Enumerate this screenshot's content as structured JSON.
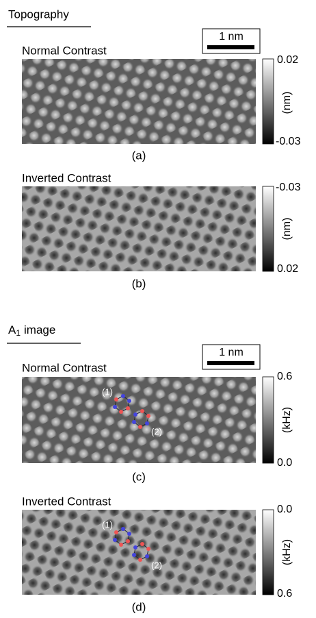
{
  "sections": [
    {
      "title": {
        "base": "Topography"
      },
      "scale_bar": "1 nm",
      "panels": [
        {
          "heading": "Normal Contrast",
          "label": "(a)",
          "colorbar": {
            "top": "0.02",
            "bottom": "-0.03",
            "unit": "(nm)"
          }
        },
        {
          "heading": "Inverted Contrast",
          "label": "(b)",
          "colorbar": {
            "top": "-0.03",
            "bottom": "0.02",
            "unit": "(nm)"
          }
        }
      ]
    },
    {
      "title": {
        "base": "A",
        "subscript": "1",
        "rest": "image"
      },
      "scale_bar": "1 nm",
      "panels": [
        {
          "heading": "Normal Contrast",
          "label": "(c)",
          "colorbar": {
            "top": "0.6",
            "bottom": "0.0",
            "unit": "(kHz)"
          },
          "markers": [
            "(1)",
            "(2)"
          ]
        },
        {
          "heading": "Inverted Contrast",
          "label": "(d)",
          "colorbar": {
            "top": "0.0",
            "bottom": "0.6",
            "unit": "(kHz)"
          },
          "markers": [
            "(1)",
            "(2)"
          ]
        }
      ]
    }
  ]
}
